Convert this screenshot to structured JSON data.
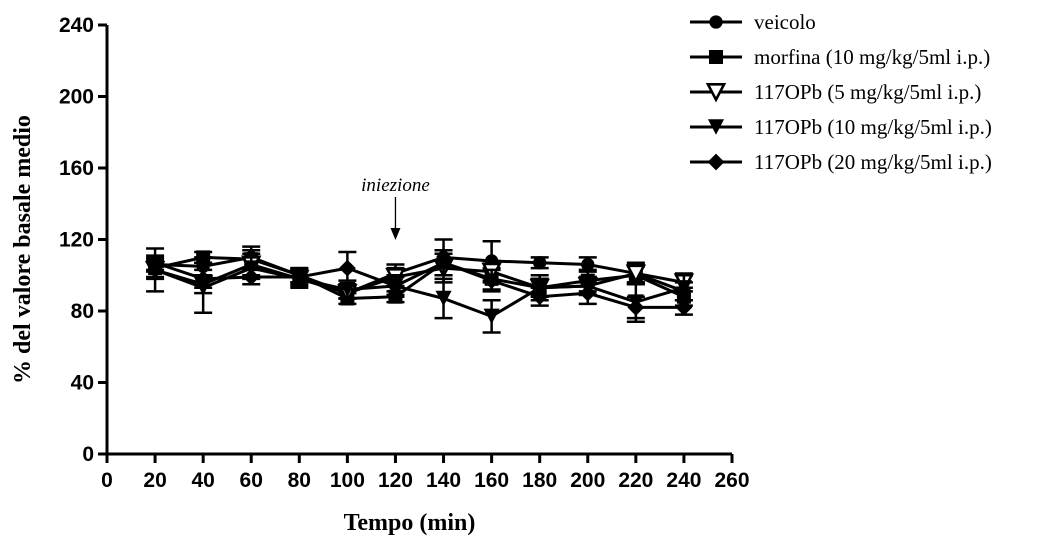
{
  "chart_data": {
    "type": "line",
    "xlabel": "Tempo (min)",
    "ylabel": "% del valore basale medio",
    "xlim": [
      0,
      260
    ],
    "ylim": [
      0,
      240
    ],
    "x_ticks": [
      0,
      20,
      40,
      60,
      80,
      100,
      120,
      140,
      160,
      180,
      200,
      220,
      240,
      260
    ],
    "y_ticks": [
      0,
      40,
      80,
      120,
      160,
      200,
      240
    ],
    "grid": false,
    "legend_position": "top-right",
    "x": [
      20,
      40,
      60,
      80,
      100,
      120,
      140,
      160,
      180,
      200,
      220,
      240
    ],
    "series": [
      {
        "name": "veicolo",
        "marker": "circle",
        "values": [
          106,
          105,
          110,
          100,
          90,
          101,
          110,
          108,
          107,
          106,
          101,
          91
        ],
        "errors": [
          4,
          5,
          6,
          4,
          3,
          5,
          10,
          11,
          3,
          4,
          6,
          5
        ]
      },
      {
        "name": "morfina (10 mg/kg/5ml i.p.)",
        "marker": "square",
        "values": [
          104,
          110,
          109,
          100,
          87,
          88,
          107,
          98,
          93,
          97,
          100,
          88
        ],
        "errors": [
          5,
          3,
          5,
          4,
          3,
          3,
          7,
          6,
          5,
          6,
          5,
          5
        ]
      },
      {
        "name": "117OPb (5 mg/kg/5ml i.p.)",
        "marker": "triangle-down-open",
        "values": [
          103,
          95,
          106,
          98,
          90,
          99,
          104,
          102,
          93,
          94,
          101,
          96
        ],
        "errors": [
          5,
          5,
          6,
          4,
          3,
          5,
          8,
          6,
          5,
          5,
          5,
          5
        ]
      },
      {
        "name": "117OPb (10 mg/kg/5ml i.p.)",
        "marker": "triangle-down",
        "values": [
          103,
          93,
          104,
          98,
          92,
          94,
          87,
          77,
          93,
          94,
          85,
          93
        ],
        "errors": [
          12,
          14,
          6,
          5,
          5,
          5,
          11,
          9,
          7,
          5,
          11,
          7
        ]
      },
      {
        "name": "117OPb (20 mg/kg/5ml i.p.)",
        "marker": "diamond",
        "values": [
          107,
          98,
          99,
          99,
          104,
          94,
          107,
          97,
          88,
          90,
          82,
          82
        ],
        "errors": [
          4,
          5,
          4,
          4,
          9,
          6,
          7,
          6,
          5,
          6,
          6,
          4
        ]
      }
    ],
    "annotations": [
      {
        "text": "iniezione",
        "x": 120,
        "points_to_y": 101
      }
    ]
  }
}
